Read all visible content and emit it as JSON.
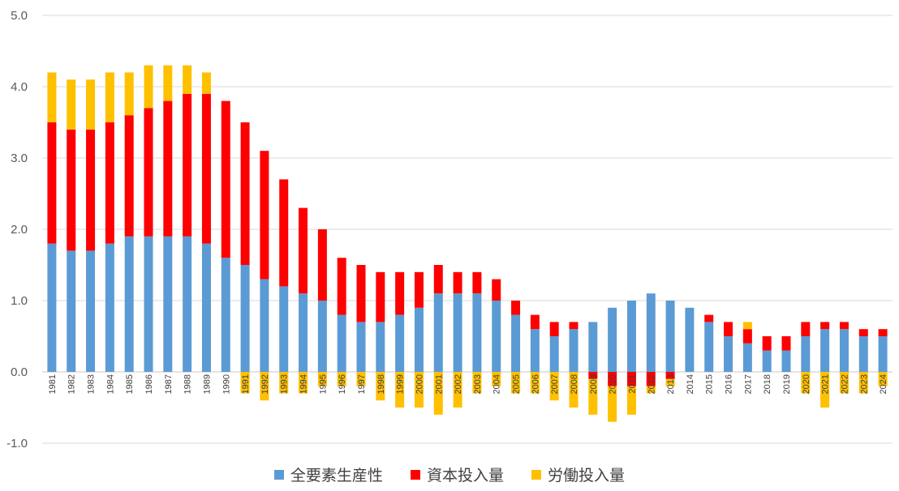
{
  "chart_data": {
    "type": "bar",
    "stacked": true,
    "title": "",
    "xlabel": "",
    "ylabel": "",
    "ylim": [
      -1.0,
      5.0
    ],
    "yticks": [
      5.0,
      4.0,
      3.0,
      2.0,
      1.0,
      0.0,
      -1.0
    ],
    "ytick_labels": [
      "5.0",
      "4.0",
      "3.0",
      "2.0",
      "1.0",
      "0.0",
      "-1.0"
    ],
    "grid": "horizontal",
    "legend_position": "bottom",
    "categories": [
      "1981",
      "1982",
      "1983",
      "1984",
      "1985",
      "1986",
      "1987",
      "1988",
      "1989",
      "1990",
      "1991",
      "1992",
      "1993",
      "1994",
      "1995",
      "1996",
      "1997",
      "1998",
      "1999",
      "2000",
      "2001",
      "2002",
      "2003",
      "2004",
      "2005",
      "2006",
      "2007",
      "2008",
      "2009",
      "2010",
      "2011",
      "2012",
      "2013",
      "2014",
      "2015",
      "2016",
      "2017",
      "2018",
      "2019",
      "2020",
      "2021",
      "2022",
      "2023",
      "2024"
    ],
    "series": [
      {
        "name": "全要素生産性",
        "color": "#5B9BD5",
        "values": [
          1.8,
          1.7,
          1.7,
          1.8,
          1.9,
          1.9,
          1.9,
          1.9,
          1.8,
          1.6,
          1.5,
          1.3,
          1.2,
          1.1,
          1.0,
          0.8,
          0.7,
          0.7,
          0.8,
          0.9,
          1.1,
          1.1,
          1.1,
          1.0,
          0.8,
          0.6,
          0.5,
          0.6,
          0.7,
          0.9,
          1.0,
          1.1,
          1.0,
          0.9,
          0.7,
          0.5,
          0.4,
          0.3,
          0.3,
          0.5,
          0.6,
          0.6,
          0.5,
          0.5
        ]
      },
      {
        "name": "資本投入量",
        "color": "#FF0000",
        "values": [
          1.7,
          1.7,
          1.7,
          1.7,
          1.7,
          1.8,
          1.9,
          2.0,
          2.1,
          2.2,
          2.0,
          1.8,
          1.5,
          1.2,
          1.0,
          0.8,
          0.8,
          0.7,
          0.6,
          0.5,
          0.4,
          0.3,
          0.3,
          0.3,
          0.2,
          0.2,
          0.2,
          0.1,
          -0.1,
          -0.2,
          -0.2,
          -0.2,
          -0.1,
          0.0,
          0.1,
          0.2,
          0.2,
          0.2,
          0.2,
          0.2,
          0.1,
          0.1,
          0.1,
          0.1
        ]
      },
      {
        "name": "労働投入量",
        "color": "#FFC000",
        "values": [
          0.7,
          0.7,
          0.7,
          0.7,
          0.6,
          0.6,
          0.5,
          0.4,
          0.3,
          0.0,
          -0.3,
          -0.4,
          -0.3,
          -0.3,
          -0.2,
          -0.2,
          -0.2,
          -0.4,
          -0.5,
          -0.5,
          -0.6,
          -0.5,
          -0.3,
          -0.2,
          -0.3,
          -0.3,
          -0.4,
          -0.5,
          -0.5,
          -0.5,
          -0.4,
          -0.1,
          -0.1,
          0.0,
          0.0,
          0.0,
          0.1,
          0.0,
          0.0,
          -0.3,
          -0.5,
          -0.3,
          -0.3,
          -0.2
        ]
      }
    ]
  }
}
